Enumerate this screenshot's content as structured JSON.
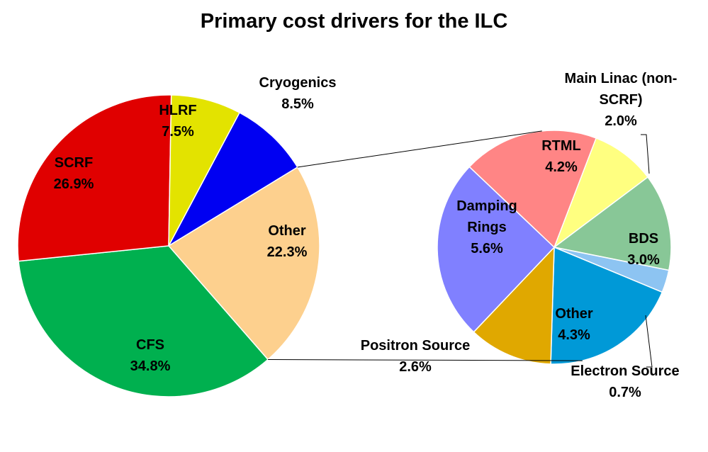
{
  "title": "Primary cost drivers for the ILC",
  "chart_data": [
    {
      "type": "pie",
      "role": "main",
      "slices": [
        {
          "name": "Cryogenics",
          "value": 8.5,
          "value_label": "8.5%",
          "color": "#0000F2"
        },
        {
          "name": "Other",
          "value": 22.3,
          "value_label": "22.3%",
          "color": "#FDD08E"
        },
        {
          "name": "CFS",
          "value": 34.8,
          "value_label": "34.8%",
          "color": "#00B04F"
        },
        {
          "name": "SCRF",
          "value": 26.9,
          "value_label": "26.9%",
          "color": "#E00000"
        },
        {
          "name": "HLRF",
          "value": 7.5,
          "value_label": "7.5%",
          "color": "#E3E300"
        }
      ]
    },
    {
      "type": "pie",
      "role": "breakdown-of-other",
      "slices": [
        {
          "name": "Main Linac (non-SCRF)",
          "value": 2.0,
          "value_label": "2.0%",
          "color": "#FFFF80"
        },
        {
          "name": "BDS",
          "value": 3.0,
          "value_label": "3.0%",
          "color": "#88C797"
        },
        {
          "name": "Electron Source",
          "value": 0.7,
          "value_label": "0.7%",
          "color": "#8DC4F2"
        },
        {
          "name": "Other",
          "value": 4.3,
          "value_label": "4.3%",
          "color": "#0099D7"
        },
        {
          "name": "Positron Source",
          "value": 2.6,
          "value_label": "2.6%",
          "color": "#E0A800"
        },
        {
          "name": "Damping Rings",
          "value": 5.6,
          "value_label": "5.6%",
          "color": "#8080FF"
        },
        {
          "name": "RTML",
          "value": 4.2,
          "value_label": "4.2%",
          "color": "#FF8585"
        }
      ]
    }
  ]
}
